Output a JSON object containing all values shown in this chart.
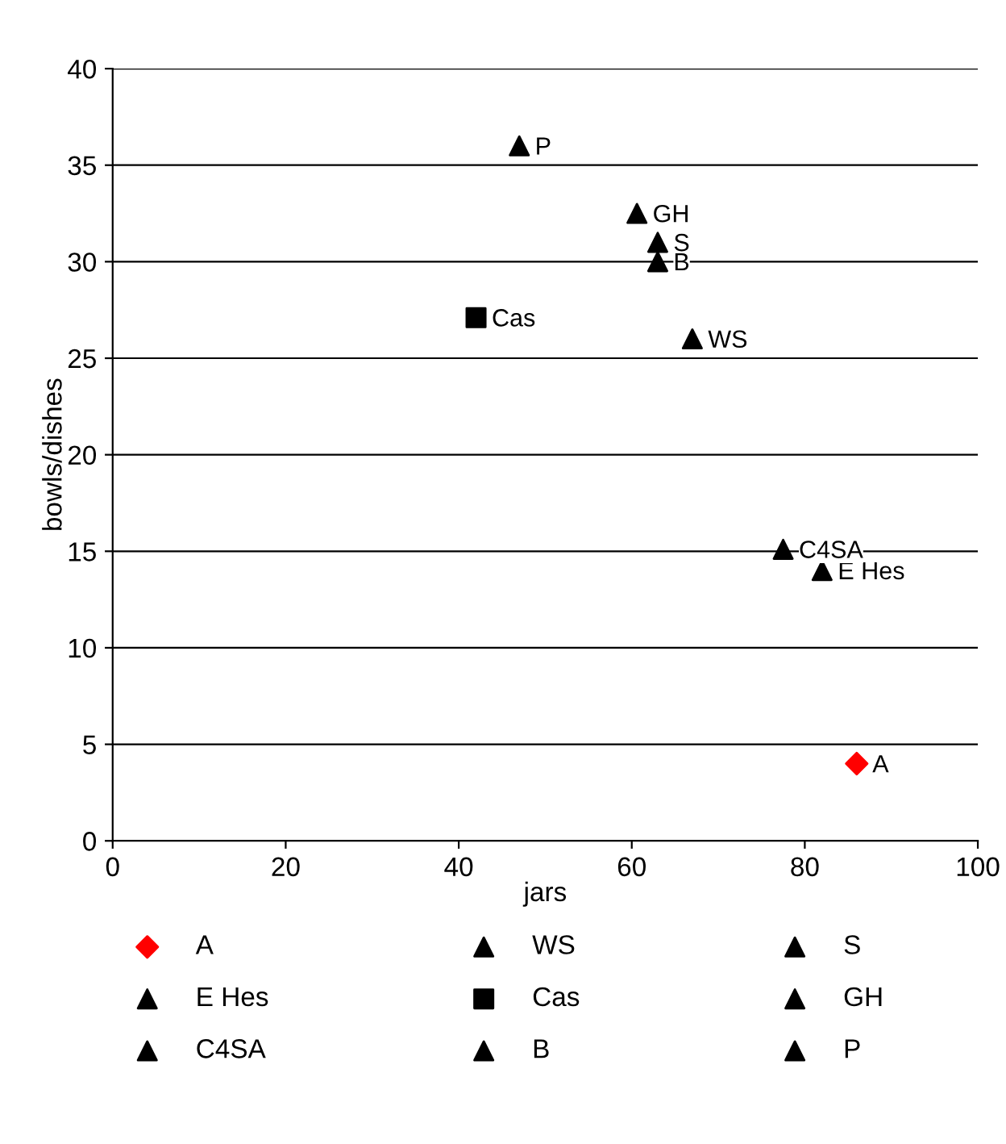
{
  "chart_data": {
    "type": "scatter",
    "xlabel": "jars",
    "ylabel": "bowls/dishes",
    "xlim": [
      0,
      100
    ],
    "xticks": [
      0,
      20,
      40,
      60,
      80,
      100
    ],
    "ylim": [
      0,
      40
    ],
    "yticks": [
      0,
      5,
      10,
      15,
      20,
      25,
      30,
      35,
      40
    ],
    "grid": "y",
    "legend": "bottom",
    "series": [
      {
        "name": "A",
        "color": "#ff0000",
        "marker": "diamond",
        "x": [
          86
        ],
        "values": [
          4
        ]
      },
      {
        "name": "WS",
        "color": "#000000",
        "marker": "triangle",
        "x": [
          67
        ],
        "values": [
          26
        ]
      },
      {
        "name": "S",
        "color": "#000000",
        "marker": "triangle",
        "x": [
          63
        ],
        "values": [
          31
        ]
      },
      {
        "name": "E Hes",
        "color": "#000000",
        "marker": "triangle",
        "x": [
          82
        ],
        "values": [
          14
        ]
      },
      {
        "name": "Cas",
        "color": "#000000",
        "marker": "square",
        "x": [
          42
        ],
        "values": [
          27.1
        ]
      },
      {
        "name": "GH",
        "color": "#000000",
        "marker": "triangle",
        "x": [
          60.6
        ],
        "values": [
          32.5
        ]
      },
      {
        "name": "C4SA",
        "color": "#000000",
        "marker": "triangle",
        "x": [
          77.5
        ],
        "values": [
          15.1
        ]
      },
      {
        "name": "B",
        "color": "#000000",
        "marker": "triangle",
        "x": [
          63
        ],
        "values": [
          30
        ]
      },
      {
        "name": "P",
        "color": "#000000",
        "marker": "triangle",
        "x": [
          47
        ],
        "values": [
          36
        ]
      }
    ]
  }
}
